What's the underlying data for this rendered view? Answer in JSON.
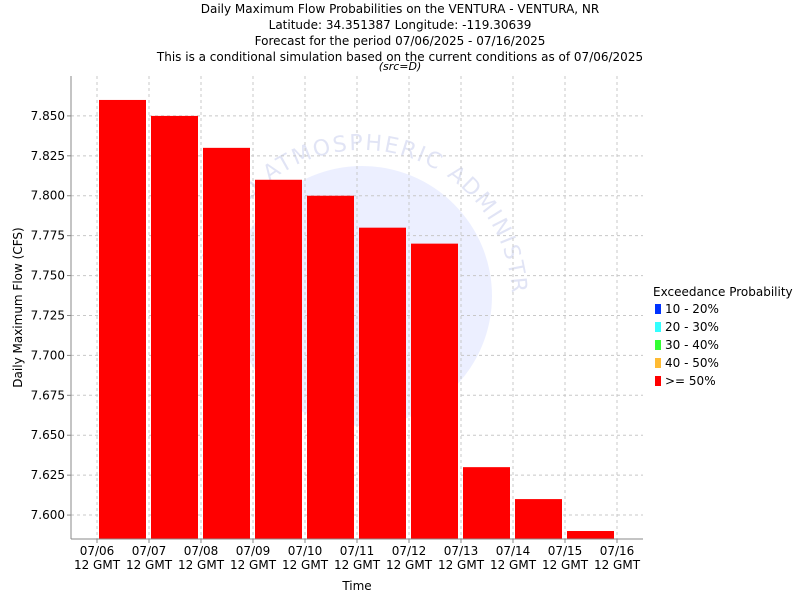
{
  "chart_data": {
    "type": "bar",
    "title_lines": [
      "Daily Maximum Flow Probabilities on the VENTURA - VENTURA, NR",
      "Latitude: 34.351387 Longitude: -119.30639",
      "Forecast for the period 07/06/2025 - 07/16/2025",
      "This is a conditional simulation based on the current conditions as of 07/06/2025"
    ],
    "subtitle": "(src=D)",
    "xlabel": "Time",
    "ylabel": "Daily Maximum Flow (CFS)",
    "ylim": [
      7.585,
      7.875
    ],
    "yticks": [
      7.6,
      7.625,
      7.65,
      7.675,
      7.7,
      7.725,
      7.75,
      7.775,
      7.8,
      7.825,
      7.85
    ],
    "ytick_labels": [
      "7.600",
      "7.625",
      "7.650",
      "7.675",
      "7.700",
      "7.725",
      "7.750",
      "7.775",
      "7.800",
      "7.825",
      "7.850"
    ],
    "x_ticks": [
      {
        "date": "07/06",
        "time": "12 GMT"
      },
      {
        "date": "07/07",
        "time": "12 GMT"
      },
      {
        "date": "07/08",
        "time": "12 GMT"
      },
      {
        "date": "07/09",
        "time": "12 GMT"
      },
      {
        "date": "07/10",
        "time": "12 GMT"
      },
      {
        "date": "07/11",
        "time": "12 GMT"
      },
      {
        "date": "07/12",
        "time": "12 GMT"
      },
      {
        "date": "07/13",
        "time": "12 GMT"
      },
      {
        "date": "07/14",
        "time": "12 GMT"
      },
      {
        "date": "07/15",
        "time": "12 GMT"
      },
      {
        "date": "07/16",
        "time": "12 GMT"
      }
    ],
    "series": [
      {
        "name": ">= 50%",
        "color": "#ff0000",
        "bars": [
          {
            "start": "07/06",
            "value": 7.86
          },
          {
            "start": "07/07",
            "value": 7.85
          },
          {
            "start": "07/08",
            "value": 7.83
          },
          {
            "start": "07/09",
            "value": 7.81
          },
          {
            "start": "07/10",
            "value": 7.8
          },
          {
            "start": "07/11",
            "value": 7.78
          },
          {
            "start": "07/12",
            "value": 7.77
          },
          {
            "start": "07/13",
            "value": 7.63
          },
          {
            "start": "07/14",
            "value": 7.61
          },
          {
            "start": "07/15",
            "value": 7.59
          }
        ]
      }
    ],
    "grid": true,
    "legend": {
      "title": "Exceedance Probability",
      "placement": "right",
      "entries": [
        {
          "label": "10 - 20%",
          "color": "#0033ff"
        },
        {
          "label": "20 - 30%",
          "color": "#33ffff"
        },
        {
          "label": "30 - 40%",
          "color": "#33ff33"
        },
        {
          "label": "40 - 50%",
          "color": "#ffbb33"
        },
        {
          "label": ">= 50%",
          "color": "#ff0000"
        }
      ]
    }
  }
}
